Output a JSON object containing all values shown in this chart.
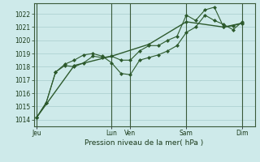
{
  "background_color": "#ceeaea",
  "grid_color": "#a8cccc",
  "line_color": "#2d5a2d",
  "marker_color": "#2d5a2d",
  "xlabel": "Pression niveau de la mer( hPa )",
  "ylim": [
    1013.5,
    1022.8
  ],
  "yticks": [
    1014,
    1015,
    1016,
    1017,
    1018,
    1019,
    1020,
    1021,
    1022
  ],
  "day_labels": [
    "Jeu",
    "Lun",
    "Ven",
    "Sam",
    "Dim"
  ],
  "day_positions": [
    0,
    96,
    120,
    192,
    264
  ],
  "xlim": [
    -4,
    280
  ],
  "series1_x": [
    0,
    12,
    24,
    36,
    48,
    60,
    72,
    84,
    96,
    108,
    120,
    132,
    144,
    156,
    168,
    180,
    192,
    204,
    216,
    228,
    240,
    252,
    264
  ],
  "series1_y": [
    1014.2,
    1015.3,
    1017.6,
    1018.1,
    1018.0,
    1018.3,
    1018.8,
    1018.7,
    1018.8,
    1018.5,
    1018.5,
    1019.2,
    1019.6,
    1019.6,
    1020.0,
    1020.3,
    1021.9,
    1021.5,
    1022.3,
    1022.5,
    1021.0,
    1021.1,
    1021.3
  ],
  "series2_x": [
    0,
    12,
    24,
    36,
    48,
    60,
    72,
    84,
    96,
    108,
    120,
    132,
    144,
    156,
    168,
    180,
    192,
    204,
    216,
    228,
    240,
    252,
    264
  ],
  "series2_y": [
    1014.2,
    1015.3,
    1017.6,
    1018.2,
    1018.5,
    1018.9,
    1019.0,
    1018.8,
    1018.3,
    1017.5,
    1017.4,
    1018.5,
    1018.7,
    1018.9,
    1019.2,
    1019.6,
    1020.6,
    1021.0,
    1021.9,
    1021.5,
    1021.2,
    1020.8,
    1021.4
  ],
  "series3_x": [
    0,
    48,
    96,
    144,
    192,
    240,
    264
  ],
  "series3_y": [
    1014.2,
    1018.1,
    1018.8,
    1019.7,
    1021.4,
    1021.0,
    1021.3
  ]
}
